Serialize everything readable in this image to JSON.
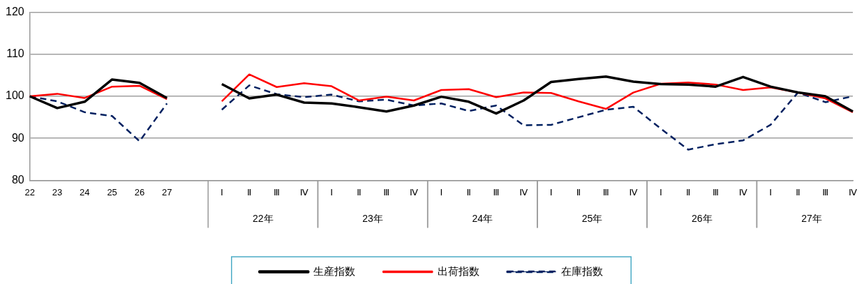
{
  "chart_data": {
    "type": "line",
    "categories": [
      "22",
      "23",
      "24",
      "25",
      "26",
      "27",
      null,
      "Ⅰ",
      "Ⅱ",
      "Ⅲ",
      "Ⅳ",
      "Ⅰ",
      "Ⅱ",
      "Ⅲ",
      "Ⅳ",
      "Ⅰ",
      "Ⅱ",
      "Ⅲ",
      "Ⅳ",
      "Ⅰ",
      "Ⅱ",
      "Ⅲ",
      "Ⅳ",
      "Ⅰ",
      "Ⅱ",
      "Ⅲ",
      "Ⅳ",
      "Ⅰ",
      "Ⅱ",
      "Ⅲ",
      "Ⅳ"
    ],
    "annotations": [
      "22年",
      "23年",
      "24年",
      "25年",
      "26年",
      "27年"
    ],
    "series": [
      {
        "name": "生産指数",
        "color": "#000000",
        "line_style": "solid",
        "values": [
          100,
          97.2,
          98.7,
          104,
          103.2,
          99.6,
          null,
          102.9,
          99.5,
          100.4,
          98.5,
          98.3,
          97.4,
          96.4,
          97.8,
          99.9,
          98.7,
          95.9,
          99.0,
          103.4,
          104.1,
          104.7,
          103.5,
          102.9,
          102.8,
          102.3,
          104.6,
          102.3,
          100.9,
          100.0,
          96.4
        ]
      },
      {
        "name": "出荷指数",
        "color": "#ff0000",
        "line_style": "solid",
        "values": [
          100,
          100.6,
          99.6,
          102.3,
          102.5,
          99.3,
          null,
          98.8,
          105.2,
          102.2,
          103.1,
          102.4,
          99.0,
          99.9,
          99.0,
          101.5,
          101.7,
          99.8,
          100.9,
          100.8,
          98.8,
          97.0,
          100.9,
          103.0,
          103.3,
          102.8,
          101.5,
          102.1,
          100.9,
          99.5,
          96.2
        ]
      },
      {
        "name": "在庫指数",
        "color": "#002060",
        "line_style": "dashed",
        "values": [
          100,
          98.8,
          96.2,
          95.3,
          89.3,
          98.3,
          null,
          96.8,
          102.6,
          100.5,
          99.8,
          100.4,
          98.8,
          99.2,
          97.8,
          98.3,
          96.5,
          97.8,
          93.1,
          93.2,
          95.0,
          96.8,
          97.5,
          92.3,
          87.3,
          88.6,
          89.5,
          93.2,
          100.9,
          98.6,
          100.0
        ]
      }
    ],
    "ylim": [
      80,
      120
    ],
    "yticks": [
      80,
      90,
      100,
      110,
      120
    ],
    "grid": "y",
    "legend": "bottom",
    "marker": "none"
  }
}
